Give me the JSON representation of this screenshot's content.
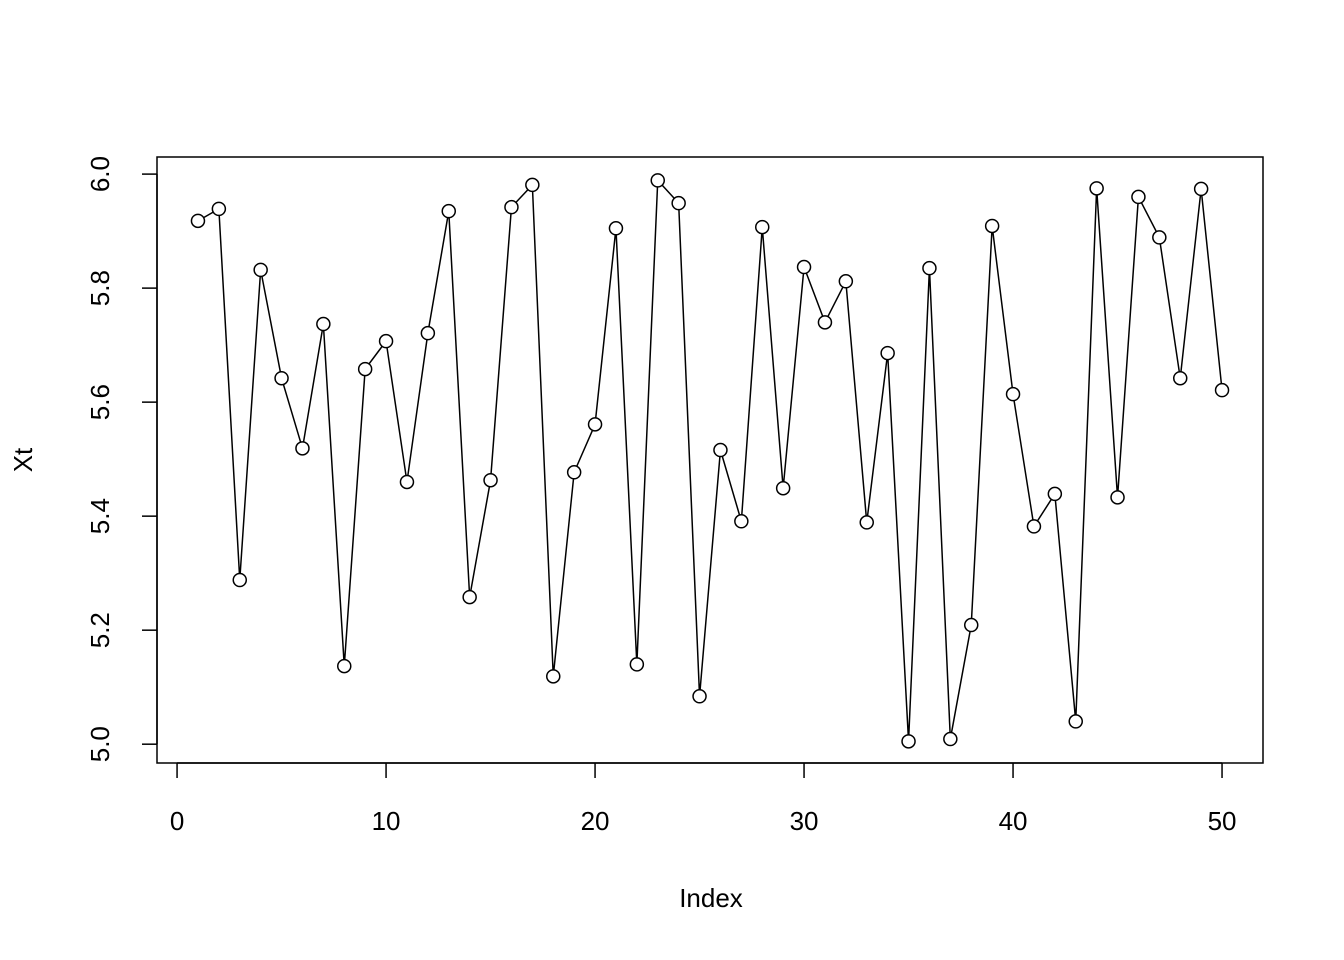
{
  "chart_data": {
    "type": "line",
    "x_label": "Index",
    "y_label": "Xt",
    "x": [
      1,
      2,
      3,
      4,
      5,
      6,
      7,
      8,
      9,
      10,
      11,
      12,
      13,
      14,
      15,
      16,
      17,
      18,
      19,
      20,
      21,
      22,
      23,
      24,
      25,
      26,
      27,
      28,
      29,
      30,
      31,
      32,
      33,
      34,
      35,
      36,
      37,
      38,
      39,
      40,
      41,
      42,
      43,
      44,
      45,
      46,
      47,
      48,
      49,
      50
    ],
    "values": [
      5.918,
      5.939,
      5.288,
      5.832,
      5.642,
      5.519,
      5.737,
      5.137,
      5.658,
      5.707,
      5.46,
      5.721,
      5.935,
      5.258,
      5.463,
      5.942,
      5.981,
      5.119,
      5.477,
      5.561,
      5.905,
      5.14,
      5.989,
      5.949,
      5.084,
      5.516,
      5.391,
      5.907,
      5.449,
      5.837,
      5.74,
      5.812,
      5.389,
      5.686,
      5.005,
      5.835,
      5.009,
      5.209,
      5.909,
      5.614,
      5.382,
      5.439,
      5.04,
      5.975,
      5.433,
      5.96,
      5.889,
      5.642,
      5.974,
      5.621
    ],
    "color": "#000000",
    "markers": true,
    "xlim": [
      -0.96,
      51.96
    ],
    "ylim": [
      4.967,
      6.03
    ],
    "xticks": [
      0,
      10,
      20,
      30,
      40,
      50
    ],
    "yticks": [
      {
        "value": 5,
        "label": "5.0"
      },
      {
        "value": 5.2,
        "label": "5.2"
      },
      {
        "value": 5.4,
        "label": "5.4"
      },
      {
        "value": 5.6,
        "label": "5.6"
      },
      {
        "value": 5.8,
        "label": "5.8"
      },
      {
        "value": 6,
        "label": "6.0"
      }
    ]
  }
}
